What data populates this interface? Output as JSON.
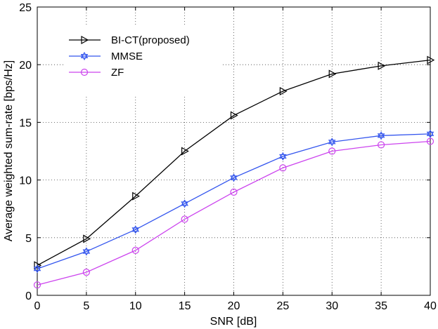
{
  "chart_data": {
    "type": "line",
    "title": "",
    "xlabel": "SNR [dB]",
    "ylabel": "Average weighted sum-rate [bps/Hz]",
    "xlim": [
      0,
      40
    ],
    "ylim": [
      0,
      25
    ],
    "xticks": [
      0,
      5,
      10,
      15,
      20,
      25,
      30,
      35,
      40
    ],
    "yticks": [
      0,
      5,
      10,
      15,
      20,
      25
    ],
    "grid": true,
    "legend_position": "top-left",
    "x": [
      0,
      5,
      10,
      15,
      20,
      25,
      30,
      35,
      40
    ],
    "series": [
      {
        "name": "BI-CT(proposed)",
        "color": "#000000",
        "marker": "triangle-right",
        "values": [
          2.6,
          4.9,
          8.6,
          12.5,
          15.6,
          17.7,
          19.2,
          19.9,
          20.4
        ]
      },
      {
        "name": "MMSE",
        "color": "#3355ee",
        "marker": "hexagram",
        "values": [
          2.3,
          3.8,
          5.7,
          7.95,
          10.2,
          12.05,
          13.3,
          13.85,
          14.0
        ]
      },
      {
        "name": "ZF",
        "color": "#cc44ee",
        "marker": "circle",
        "values": [
          0.9,
          2.0,
          3.9,
          6.6,
          8.95,
          11.05,
          12.5,
          13.05,
          13.35
        ]
      }
    ]
  }
}
